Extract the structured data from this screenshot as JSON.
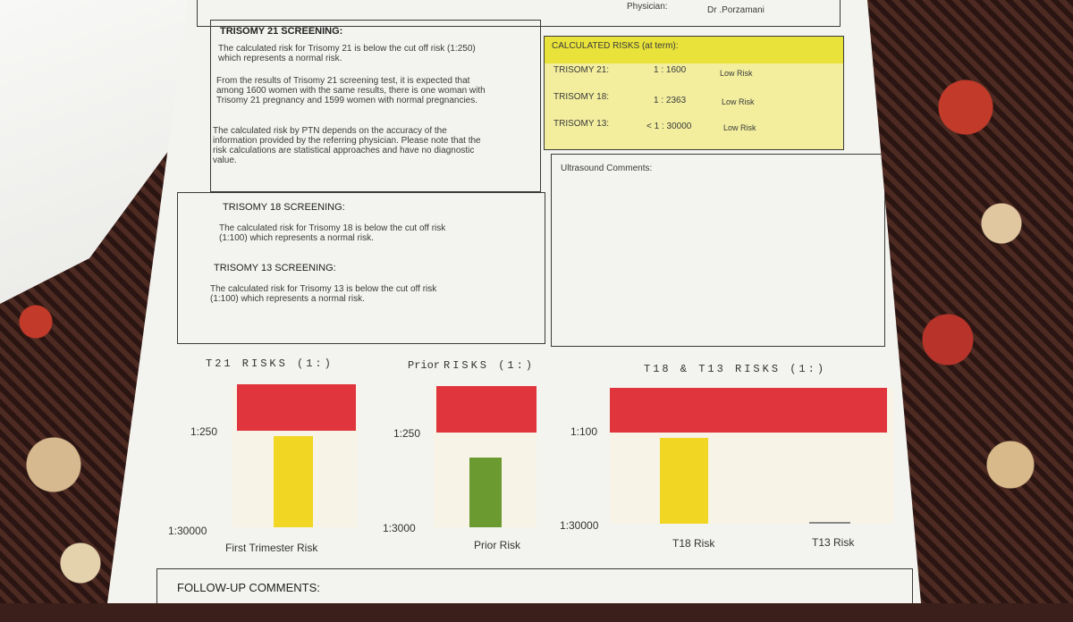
{
  "header": {
    "physician_label": "Physician:",
    "physician_name": "Dr .Porzamani"
  },
  "t21": {
    "title": "TRISOMY 21 SCREENING:",
    "p1": [
      "The calculated risk for Trisomy 21  is below the cut off risk (1:250)",
      "which represents a normal risk."
    ],
    "p2": [
      "From the results of Trisomy 21 screening test, it is expected that",
      "among 1600 women with the same results, there is one woman with",
      "Trisomy 21 pregnancy and 1599 women with normal pregnancies."
    ],
    "p3": [
      "The calculated risk by PTN depends on the accuracy of the",
      "information provided by the referring physician. Please note that the",
      "risk calculations are statistical approaches and have no diagnostic",
      "value."
    ]
  },
  "t18": {
    "title": "TRISOMY 18 SCREENING:",
    "p": [
      "The calculated risk for Trisomy 18  is below the cut off risk",
      "(1:100) which represents a normal risk."
    ]
  },
  "t13": {
    "title": "TRISOMY 13 SCREENING:",
    "p": [
      "The calculated risk for Trisomy 13  is below the cut off risk",
      "(1:100) which represents a normal risk."
    ]
  },
  "risks": {
    "title": "CALCULATED RISKS (at term):",
    "rows": [
      {
        "name": "TRISOMY 21:",
        "value": "1 : 1600",
        "status": "Low Risk"
      },
      {
        "name": "TRISOMY 18:",
        "value": "1 : 2363",
        "status": "Low Risk"
      },
      {
        "name": "TRISOMY 13:",
        "value": "< 1 : 30000",
        "status": "Low Risk"
      }
    ]
  },
  "ultrasound": {
    "label": "Ultrasound Comments:"
  },
  "followup": {
    "label": "FOLLOW-UP COMMENTS:"
  },
  "chart_data": [
    {
      "type": "bar",
      "title": "T21  RISKS (1:)",
      "categories": [
        "First Trimester Risk"
      ],
      "values": [
        1600
      ],
      "ytick_labels": [
        "1:250",
        "1:30000"
      ],
      "cutoff": 250,
      "colors": [
        "#f2d624"
      ]
    },
    {
      "type": "bar",
      "title_prefix": "Prior",
      "title": "RISKS (1:)",
      "categories": [
        "Prior Risk"
      ],
      "values": [
        1000
      ],
      "ytick_labels": [
        "1:250",
        "1:3000"
      ],
      "cutoff": 250,
      "colors": [
        "#6a9a30"
      ]
    },
    {
      "type": "bar",
      "title": "T18 & T13 RISKS (1:)",
      "categories": [
        "T18 Risk",
        "T13 Risk"
      ],
      "values": [
        2363,
        30000
      ],
      "ytick_labels": [
        "1:100",
        "1:30000"
      ],
      "cutoff": 100,
      "colors": [
        "#f2d624",
        "#888888"
      ]
    }
  ]
}
